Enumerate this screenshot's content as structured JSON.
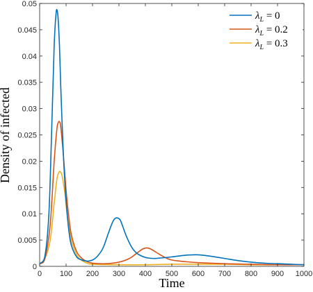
{
  "chart_data": {
    "type": "line",
    "xlabel": "Time",
    "ylabel": "Density of infected",
    "xlim": [
      0,
      1000
    ],
    "ylim": [
      0,
      0.05
    ],
    "xticks": [
      0,
      100,
      200,
      300,
      400,
      500,
      600,
      700,
      800,
      900,
      1000
    ],
    "yticks": [
      0,
      0.005,
      0.01,
      0.015,
      0.02,
      0.025,
      0.03,
      0.035,
      0.04,
      0.045,
      0.05
    ],
    "xtick_labels": [
      "0",
      "100",
      "200",
      "300",
      "400",
      "500",
      "600",
      "700",
      "800",
      "900",
      "1000"
    ],
    "ytick_labels": [
      "0",
      "0.005",
      "0.01",
      "0.015",
      "0.02",
      "0.025",
      "0.03",
      "0.035",
      "0.04",
      "0.045",
      "0.05"
    ],
    "grid": false,
    "legend_position": "top-right",
    "series": [
      {
        "name": "λL = 0",
        "symbol": "λ",
        "subscript": "L",
        "value_text": " = 0",
        "color": "#0072BD",
        "x": [
          0,
          20,
          35,
          45,
          55,
          62,
          66,
          70,
          75,
          80,
          90,
          100,
          110,
          120,
          140,
          160,
          180,
          200,
          220,
          240,
          260,
          275,
          285,
          295,
          305,
          315,
          330,
          350,
          370,
          400,
          430,
          460,
          500,
          550,
          590,
          620,
          650,
          700,
          750,
          800,
          850,
          900,
          950,
          1000
        ],
        "y": [
          0.0005,
          0.002,
          0.01,
          0.025,
          0.042,
          0.048,
          0.0487,
          0.047,
          0.042,
          0.034,
          0.021,
          0.0125,
          0.007,
          0.004,
          0.0018,
          0.0012,
          0.001,
          0.0012,
          0.002,
          0.0035,
          0.0063,
          0.0083,
          0.0091,
          0.0092,
          0.0088,
          0.0075,
          0.0055,
          0.0035,
          0.0024,
          0.0017,
          0.0015,
          0.0016,
          0.0018,
          0.0021,
          0.0022,
          0.0021,
          0.0019,
          0.0015,
          0.0011,
          0.0008,
          0.0006,
          0.0005,
          0.0004,
          0.0003
        ]
      },
      {
        "name": "λL = 0.2",
        "symbol": "λ",
        "subscript": "L",
        "value_text": " = 0.2",
        "color": "#D95319",
        "x": [
          0,
          20,
          40,
          55,
          65,
          70,
          75,
          80,
          90,
          100,
          110,
          120,
          140,
          160,
          180,
          200,
          250,
          300,
          340,
          370,
          390,
          405,
          420,
          440,
          470,
          500,
          550,
          600,
          700,
          800,
          900,
          1000
        ],
        "y": [
          0.0005,
          0.0015,
          0.008,
          0.02,
          0.026,
          0.0273,
          0.0275,
          0.0265,
          0.021,
          0.0145,
          0.0095,
          0.006,
          0.0028,
          0.0015,
          0.0009,
          0.0006,
          0.0005,
          0.0008,
          0.0015,
          0.0026,
          0.0033,
          0.0035,
          0.0033,
          0.0027,
          0.0018,
          0.0012,
          0.0009,
          0.0007,
          0.0005,
          0.0004,
          0.0003,
          0.0003
        ]
      },
      {
        "name": "λL = 0.3",
        "symbol": "λ",
        "subscript": "L",
        "value_text": " = 0.3",
        "color": "#EDB120",
        "x": [
          0,
          20,
          40,
          55,
          65,
          72,
          78,
          85,
          95,
          105,
          120,
          140,
          160,
          180,
          200,
          300,
          400,
          500,
          600,
          700,
          800,
          900,
          1000
        ],
        "y": [
          0.0005,
          0.0015,
          0.005,
          0.012,
          0.0165,
          0.0178,
          0.018,
          0.0172,
          0.014,
          0.0095,
          0.005,
          0.0022,
          0.0011,
          0.0006,
          0.0004,
          0.0003,
          0.0003,
          0.0004,
          0.0004,
          0.0004,
          0.0003,
          0.0003,
          0.0003
        ]
      }
    ]
  }
}
